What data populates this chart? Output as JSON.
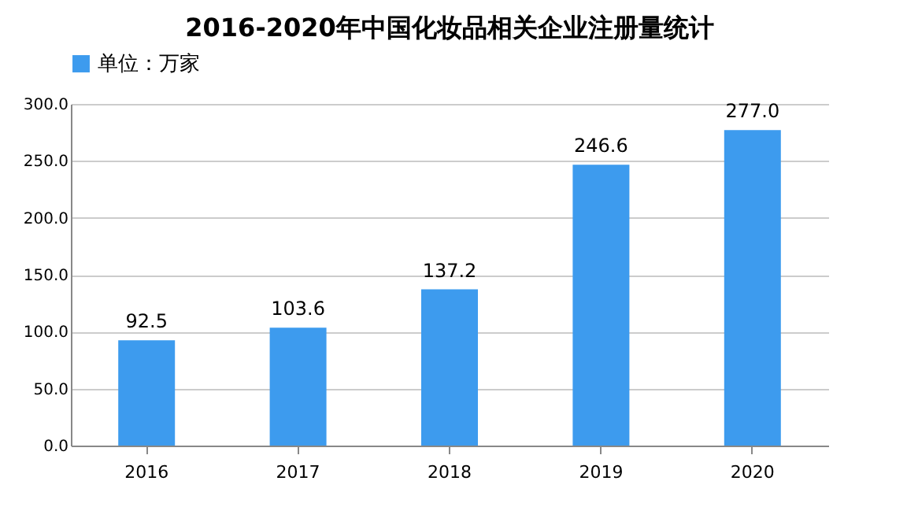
{
  "chart_data": {
    "type": "bar",
    "title": "2016-2020年中国化妆品相关企业注册量统计",
    "categories": [
      "2016",
      "2017",
      "2018",
      "2019",
      "2020"
    ],
    "series": [
      {
        "name": "单位：万家",
        "color": "#3d9bee",
        "values": [
          92.5,
          103.6,
          137.2,
          246.6,
          277.0
        ]
      }
    ],
    "value_labels": [
      "92.5",
      "103.6",
      "137.2",
      "246.6",
      "277.0"
    ],
    "ylim": [
      0,
      300
    ],
    "yticks": [
      {
        "value": 0,
        "label": "0.0"
      },
      {
        "value": 50,
        "label": "50.0"
      },
      {
        "value": 100,
        "label": "100.0"
      },
      {
        "value": 150,
        "label": "150.0"
      },
      {
        "value": 200,
        "label": "200.0"
      },
      {
        "value": 250,
        "label": "250.0"
      },
      {
        "value": 300,
        "label": "300.0"
      }
    ],
    "grid": "y",
    "legend": "top"
  }
}
